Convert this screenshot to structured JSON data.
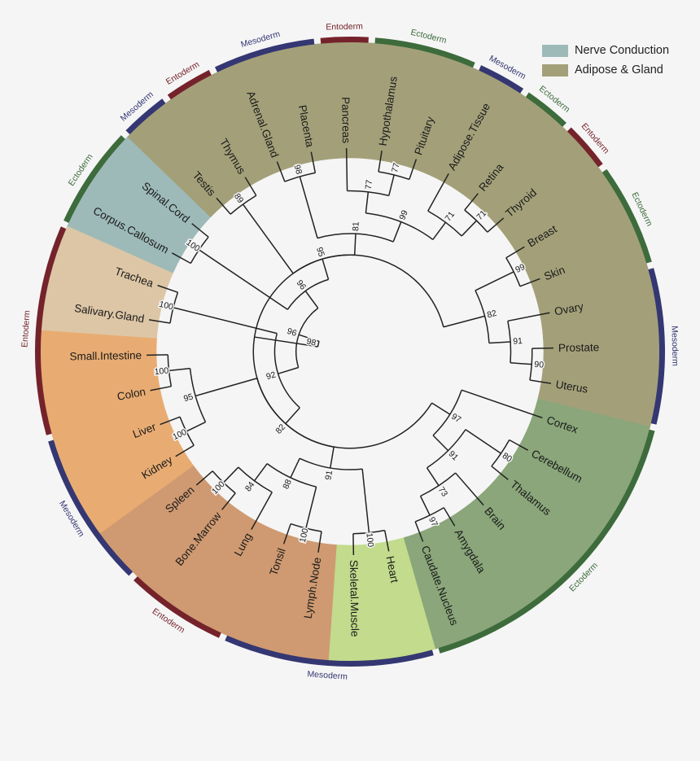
{
  "legend": [
    {
      "label": "Nerve Conduction",
      "color": "#9dbab8"
    },
    {
      "label": "Adipose & Gland",
      "color": "#a3a079"
    }
  ],
  "colors": {
    "ectoderm": "#3d6b3c",
    "mesoderm": "#343772",
    "entoderm": "#75232b",
    "branch": "#222222"
  },
  "tissues": [
    {
      "name": "Cortex",
      "color": "#8aa67a"
    },
    {
      "name": "Cerebellum",
      "color": "#8aa67a"
    },
    {
      "name": "Thalamus",
      "color": "#8aa67a"
    },
    {
      "name": "Brain",
      "color": "#8aa67a"
    },
    {
      "name": "Amygdala",
      "color": "#8aa67a"
    },
    {
      "name": "Caudate.Nucleus",
      "color": "#8aa67a"
    },
    {
      "name": "Heart",
      "color": "#c2db8c"
    },
    {
      "name": "Skeletal.Muscle",
      "color": "#c2db8c"
    },
    {
      "name": "Lymph.Node",
      "color": "#cf9a71"
    },
    {
      "name": "Tonsil",
      "color": "#cf9a71"
    },
    {
      "name": "Lung",
      "color": "#cf9a71"
    },
    {
      "name": "Bone.Marrow",
      "color": "#cf9a71"
    },
    {
      "name": "Spleen",
      "color": "#cf9a71"
    },
    {
      "name": "Kidney",
      "color": "#e8ac73"
    },
    {
      "name": "Liver",
      "color": "#e8ac73"
    },
    {
      "name": "Colon",
      "color": "#e8ac73"
    },
    {
      "name": "Small.Intestine",
      "color": "#e8ac73"
    },
    {
      "name": "Salivary.Gland",
      "color": "#ddc6a6"
    },
    {
      "name": "Trachea",
      "color": "#ddc6a6"
    },
    {
      "name": "Corpus.Callosum",
      "color": "#9dbab8"
    },
    {
      "name": "Spinal.Cord",
      "color": "#9dbab8"
    },
    {
      "name": "Testis",
      "color": "#a3a079"
    },
    {
      "name": "Thymus",
      "color": "#a3a079"
    },
    {
      "name": "Adrenal.Gland",
      "color": "#a3a079"
    },
    {
      "name": "Placenta",
      "color": "#a3a079"
    },
    {
      "name": "Pancreas",
      "color": "#a3a079"
    },
    {
      "name": "Hypothalamus",
      "color": "#a3a079"
    },
    {
      "name": "Pituitary",
      "color": "#a3a079"
    },
    {
      "name": "Adipose.Tissue",
      "color": "#a3a079"
    },
    {
      "name": "Retina",
      "color": "#a3a079"
    },
    {
      "name": "Thyroid",
      "color": "#a3a079"
    },
    {
      "name": "Breast",
      "color": "#a3a079"
    },
    {
      "name": "Skin",
      "color": "#a3a079"
    },
    {
      "name": "Ovary",
      "color": "#a3a079"
    },
    {
      "name": "Prostate",
      "color": "#a3a079"
    },
    {
      "name": "Uterus",
      "color": "#a3a079"
    }
  ],
  "layers": [
    {
      "label": "Ectoderm",
      "type": "ectoderm",
      "from": 0,
      "to": 6
    },
    {
      "label": "Mesoderm",
      "type": "mesoderm",
      "from": 6,
      "to": 10
    },
    {
      "label": "Entoderm",
      "type": "entoderm",
      "from": 10,
      "to": 12
    },
    {
      "label": "Mesoderm",
      "type": "mesoderm",
      "from": 12,
      "to": 15
    },
    {
      "label": "Entoderm",
      "type": "entoderm",
      "from": 15,
      "to": 19
    },
    {
      "label": "Ectoderm",
      "type": "ectoderm",
      "from": 19,
      "to": 21
    },
    {
      "label": "Mesoderm",
      "type": "mesoderm",
      "from": 21,
      "to": 22
    },
    {
      "label": "Entoderm",
      "type": "entoderm",
      "from": 22,
      "to": 23
    },
    {
      "label": "Mesoderm",
      "type": "mesoderm",
      "from": 23,
      "to": 25
    },
    {
      "label": "Entoderm",
      "type": "entoderm",
      "from": 25,
      "to": 26
    },
    {
      "label": "Ectoderm",
      "type": "ectoderm",
      "from": 26,
      "to": 28
    },
    {
      "label": "Mesoderm",
      "type": "mesoderm",
      "from": 28,
      "to": 29
    },
    {
      "label": "Ectoderm",
      "type": "ectoderm",
      "from": 29,
      "to": 30
    },
    {
      "label": "Entoderm",
      "type": "entoderm",
      "from": 30,
      "to": 31
    },
    {
      "label": "Ectoderm",
      "type": "ectoderm",
      "from": 31,
      "to": 33
    },
    {
      "label": "Mesoderm",
      "type": "mesoderm",
      "from": 33,
      "to": 36
    }
  ],
  "tree": {
    "n": "98",
    "c": [
      {
        "n": "96",
        "c": [
          {
            "n": "96",
            "c": [
              {
                "n": "95",
                "c": [
                  {
                    "n": "89",
                    "c": [
                      {
                        "l": 21
                      },
                      {
                        "l": 22
                      }
                    ]
                  },
                  {
                    "n": "81",
                    "c": [
                      {
                        "n": "98",
                        "c": [
                          {
                            "l": 23
                          },
                          {
                            "l": 24
                          }
                        ]
                      },
                      {
                        "n": "99",
                        "c": [
                          {
                            "n": "77",
                            "c": [
                              {
                                "l": 25
                              },
                              {
                                "n": "77",
                                "c": [
                                  {
                                    "l": 26
                                  },
                                  {
                                    "l": 27
                                  }
                                ]
                              }
                            ]
                          },
                          {
                            "n": "71",
                            "c": [
                              {
                                "l": 28
                              },
                              {
                                "n": "71",
                                "c": [
                                  {
                                    "l": 29
                                  },
                                  {
                                    "l": 30
                                  }
                                ]
                              }
                            ]
                          }
                        ]
                      }
                    ]
                  }
                ]
              },
              {
                "n": "100",
                "c": [
                  {
                    "l": 19
                  },
                  {
                    "l": 20
                  }
                ]
              }
            ]
          },
          {
            "n": "92",
            "c": [
              {
                "n": "100",
                "c": [
                  {
                    "l": 17
                  },
                  {
                    "l": 18
                  }
                ]
              },
              {
                "n": "82",
                "c": [
                  {
                    "n": "95",
                    "c": [
                      {
                        "n": "100",
                        "c": [
                          {
                            "l": 15
                          },
                          {
                            "l": 16
                          }
                        ]
                      },
                      {
                        "n": "100",
                        "c": [
                          {
                            "l": 13
                          },
                          {
                            "l": 14
                          }
                        ]
                      }
                    ]
                  },
                  {
                    "n": "91",
                    "c": [
                      {
                        "n": "88",
                        "c": [
                          {
                            "n": "84",
                            "c": [
                              {
                                "n": "100",
                                "c": [
                                  {
                                    "l": 11
                                  },
                                  {
                                    "l": 12
                                  }
                                ]
                              },
                              {
                                "l": 10
                              }
                            ]
                          },
                          {
                            "n": "100",
                            "c": [
                              {
                                "l": 8
                              },
                              {
                                "l": 9
                              }
                            ]
                          }
                        ]
                      },
                      {
                        "n": "100",
                        "c": [
                          {
                            "l": 6
                          },
                          {
                            "l": 7
                          }
                        ]
                      }
                    ]
                  }
                ]
              }
            ]
          }
        ]
      },
      {
        "n": "",
        "c": [
          {
            "n": "97",
            "c": [
              {
                "l": 0
              },
              {
                "n": "91",
                "c": [
                  {
                    "n": "80",
                    "c": [
                      {
                        "l": 1
                      },
                      {
                        "l": 2
                      }
                    ]
                  },
                  {
                    "n": "73",
                    "c": [
                      {
                        "l": 3
                      },
                      {
                        "n": "97",
                        "c": [
                          {
                            "l": 4
                          },
                          {
                            "l": 5
                          }
                        ]
                      }
                    ]
                  }
                ]
              }
            ]
          },
          {
            "n": "82",
            "c": [
              {
                "n": "99",
                "c": [
                  {
                    "l": 31
                  },
                  {
                    "l": 32
                  }
                ]
              },
              {
                "n": "91",
                "c": [
                  {
                    "l": 33
                  },
                  {
                    "n": "90",
                    "c": [
                      {
                        "l": 34
                      },
                      {
                        "l": 35
                      }
                    ]
                  }
                ]
              }
            ]
          }
        ]
      }
    ]
  }
}
